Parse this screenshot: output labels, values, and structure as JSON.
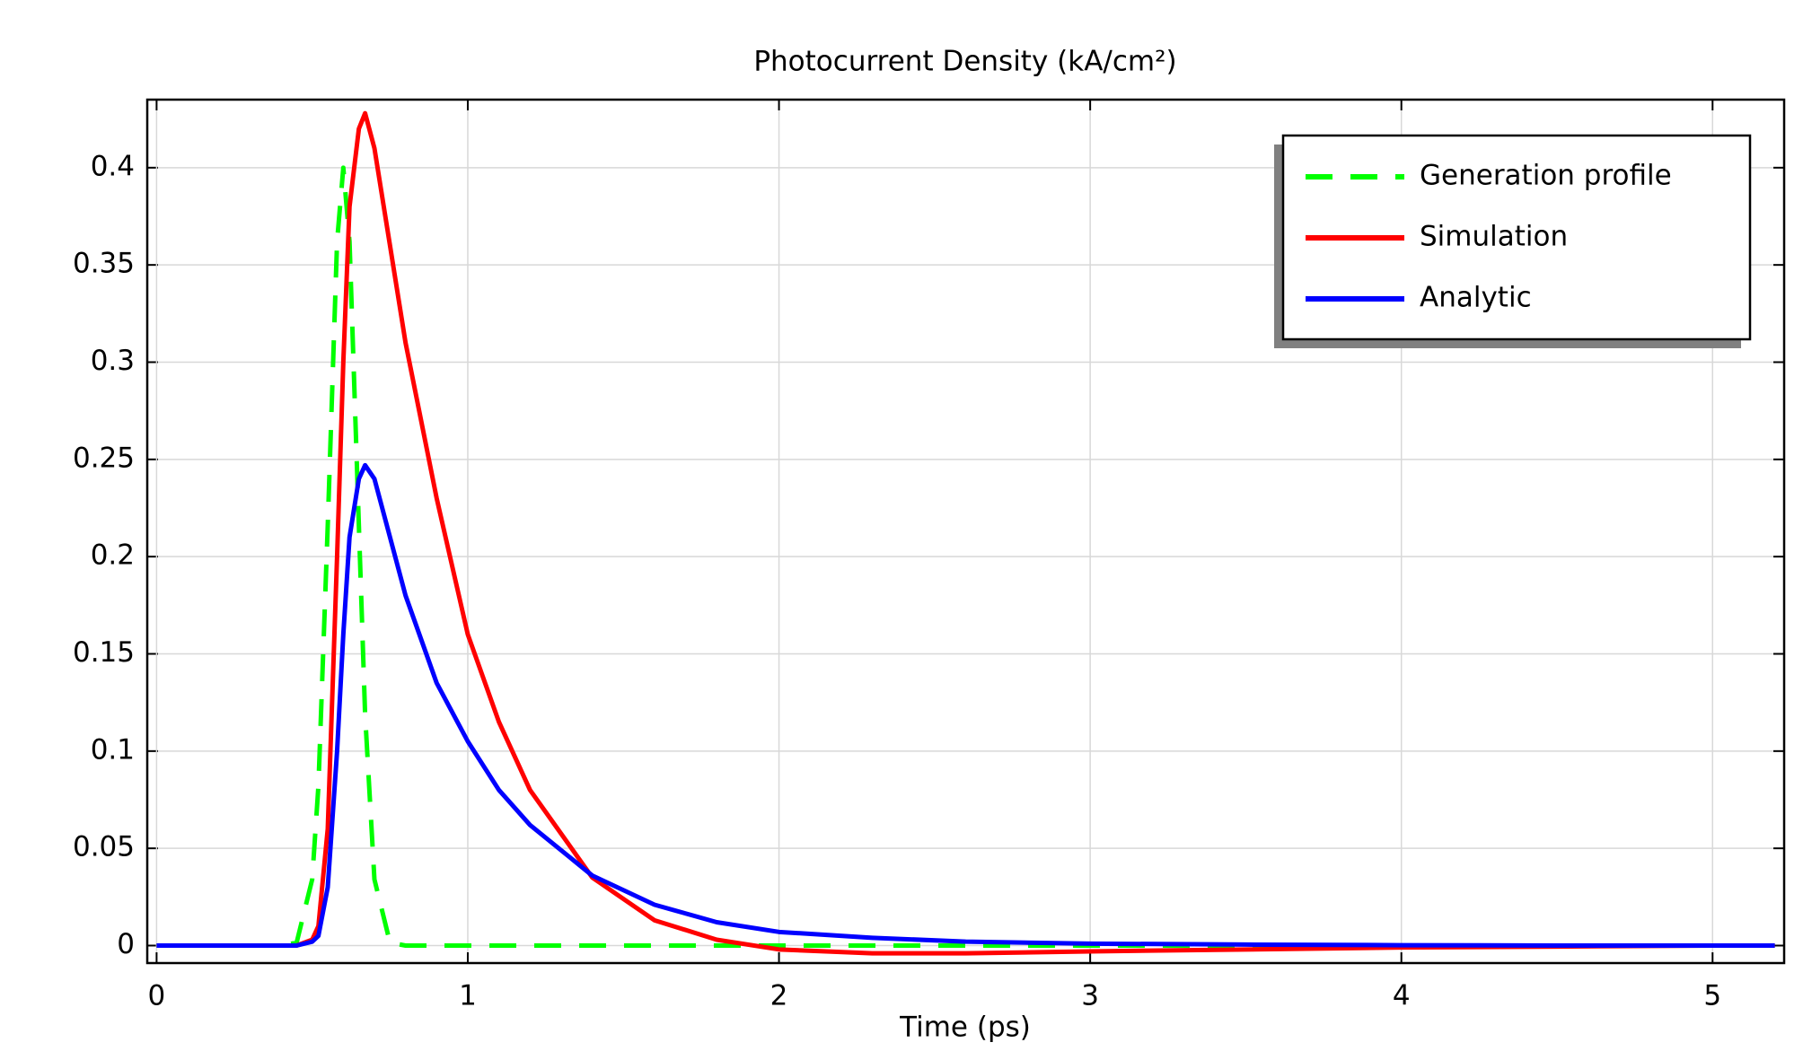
{
  "chart_data": {
    "type": "line",
    "title": "Photocurrent Density (kA/cm²)",
    "x_label": "Time (ps)",
    "x": [
      0,
      0.4,
      0.45,
      0.5,
      0.52,
      0.55,
      0.58,
      0.6,
      0.62,
      0.65,
      0.67,
      0.7,
      0.75,
      0.8,
      0.9,
      1.0,
      1.1,
      1.2,
      1.4,
      1.6,
      1.8,
      2.0,
      2.3,
      2.6,
      3.0,
      3.5,
      4.0,
      4.5,
      5.0,
      5.2
    ],
    "series": [
      {
        "name": "Generation profile",
        "color": "#00ff00",
        "dashed": true,
        "values": [
          0,
          0,
          0.0015,
          0.034,
          0.082,
          0.216,
          0.362,
          0.4,
          0.362,
          0.216,
          0.119,
          0.034,
          0.0015,
          0,
          0,
          0,
          0,
          0,
          0,
          0,
          0,
          0,
          0,
          0,
          0,
          0,
          0,
          0,
          0,
          0
        ]
      },
      {
        "name": "Simulation",
        "color": "#ff0000",
        "dashed": false,
        "values": [
          0,
          0,
          0,
          0.003,
          0.01,
          0.06,
          0.2,
          0.3,
          0.38,
          0.42,
          0.428,
          0.41,
          0.36,
          0.31,
          0.23,
          0.16,
          0.115,
          0.08,
          0.035,
          0.013,
          0.003,
          -0.002,
          -0.004,
          -0.004,
          -0.003,
          -0.002,
          -0.001,
          -0.0005,
          0,
          0
        ]
      },
      {
        "name": "Analytic",
        "color": "#0000ff",
        "dashed": false,
        "values": [
          0,
          0,
          0,
          0.002,
          0.005,
          0.03,
          0.1,
          0.16,
          0.21,
          0.24,
          0.247,
          0.24,
          0.21,
          0.18,
          0.135,
          0.105,
          0.08,
          0.062,
          0.036,
          0.021,
          0.012,
          0.007,
          0.004,
          0.002,
          0.001,
          0.0005,
          0.0002,
          0,
          0,
          0
        ]
      }
    ],
    "xlim": [
      -0.03,
      5.23
    ],
    "ylim": [
      -0.009,
      0.435
    ],
    "xticks": [
      0,
      1,
      2,
      3,
      4,
      5
    ],
    "yticks": [
      0,
      0.05,
      0.1,
      0.15,
      0.2,
      0.25,
      0.3,
      0.35,
      0.4
    ],
    "grid": true,
    "legend": "upper right"
  }
}
